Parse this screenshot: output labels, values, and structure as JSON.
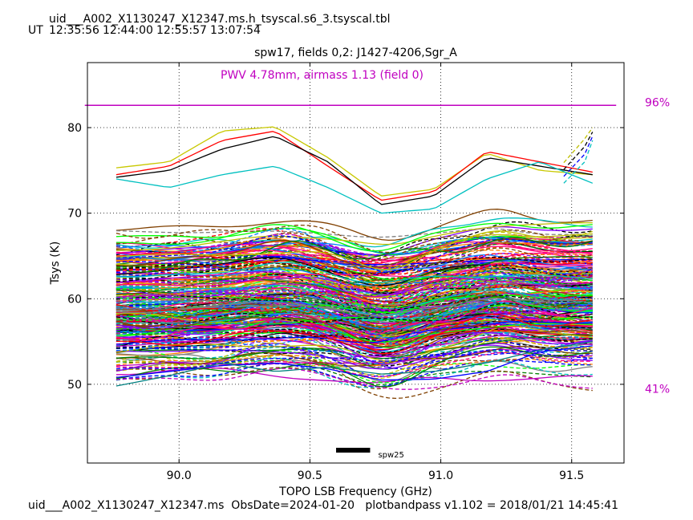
{
  "header": {
    "title": "uid___A002_X1130247_X12347.ms.h_tsyscal.s6_3.tsyscal.tbl",
    "ut_label": "UT",
    "ut_times": [
      "12:35:56",
      "12:44:00",
      "12:55:57",
      "13:07:54"
    ]
  },
  "footer": {
    "text": "uid___A002_X1130247_X12347.ms  ObsDate=2024-01-20   plotbandpass v1.102 = 2018/01/21 14:45:41"
  },
  "chart_data": {
    "type": "line",
    "title": "spw17,  fields 0,2: J1427-4206,Sgr_A",
    "annotation": "PWV 4.78mm, airmass 1.13 (field 0)",
    "xlabel": "TOPO LSB Frequency (GHz)",
    "ylabel": "Tsys (K)",
    "xlim": [
      89.65,
      91.7
    ],
    "ylim": [
      40.8,
      87.6
    ],
    "xticks": [
      90.0,
      90.5,
      91.0,
      91.5
    ],
    "xtick_labels": [
      "90.0",
      "90.5",
      "91.0",
      "91.5"
    ],
    "yticks": [
      50,
      60,
      70,
      80
    ],
    "ytick_labels": [
      "50",
      "60",
      "70",
      "80"
    ],
    "grid": true,
    "atmosphere": {
      "color": "#c000c0",
      "x": [
        89.64,
        91.67
      ],
      "transmission_pct": [
        96,
        96
      ],
      "top_label": "96%",
      "bottom_label": "41%",
      "pct_range": [
        41,
        96
      ]
    },
    "spw_marker": {
      "label": "spw25",
      "x_range": [
        90.6,
        90.73
      ],
      "y": 42.3
    },
    "freq_range": [
      89.76,
      91.58
    ],
    "series_style": {
      "n_traces": 300,
      "dashed_fraction": 0.45
    },
    "series": [
      {
        "color": "#c8c800",
        "style": "solid",
        "shape": "bump_hi",
        "values": [
          75.3,
          76.0,
          79.6,
          80.1,
          76.5,
          72.0,
          72.8,
          77.0,
          75.0,
          74.5
        ]
      },
      {
        "color": "#ff0000",
        "style": "solid",
        "shape": "bump_hi",
        "values": [
          74.5,
          75.5,
          78.5,
          79.6,
          75.5,
          71.5,
          72.5,
          77.2,
          76.0,
          74.8
        ]
      },
      {
        "color": "#000000",
        "style": "solid",
        "shape": "bump_hi",
        "values": [
          74.2,
          75.0,
          77.5,
          79.0,
          76.0,
          71.0,
          72.0,
          76.5,
          75.5,
          74.5
        ]
      },
      {
        "color": "#00c0c0",
        "style": "solid",
        "shape": "bump_hi",
        "values": [
          74.0,
          73.0,
          74.5,
          75.5,
          73.0,
          70.0,
          70.5,
          74.0,
          76.0,
          73.5
        ]
      },
      {
        "color": "#0000ff",
        "style": "solid",
        "shape": "low",
        "values": [
          50.8,
          51.5,
          52.2,
          52.5,
          51.8,
          50.5,
          50.6,
          51.5,
          53.8,
          54.5
        ]
      },
      {
        "color": "#008080",
        "style": "solid",
        "shape": "low",
        "values": [
          49.8,
          51.0,
          52.5,
          51.5,
          52.0,
          51.2,
          51.5,
          52.5,
          54.0,
          55.0
        ]
      }
    ]
  }
}
